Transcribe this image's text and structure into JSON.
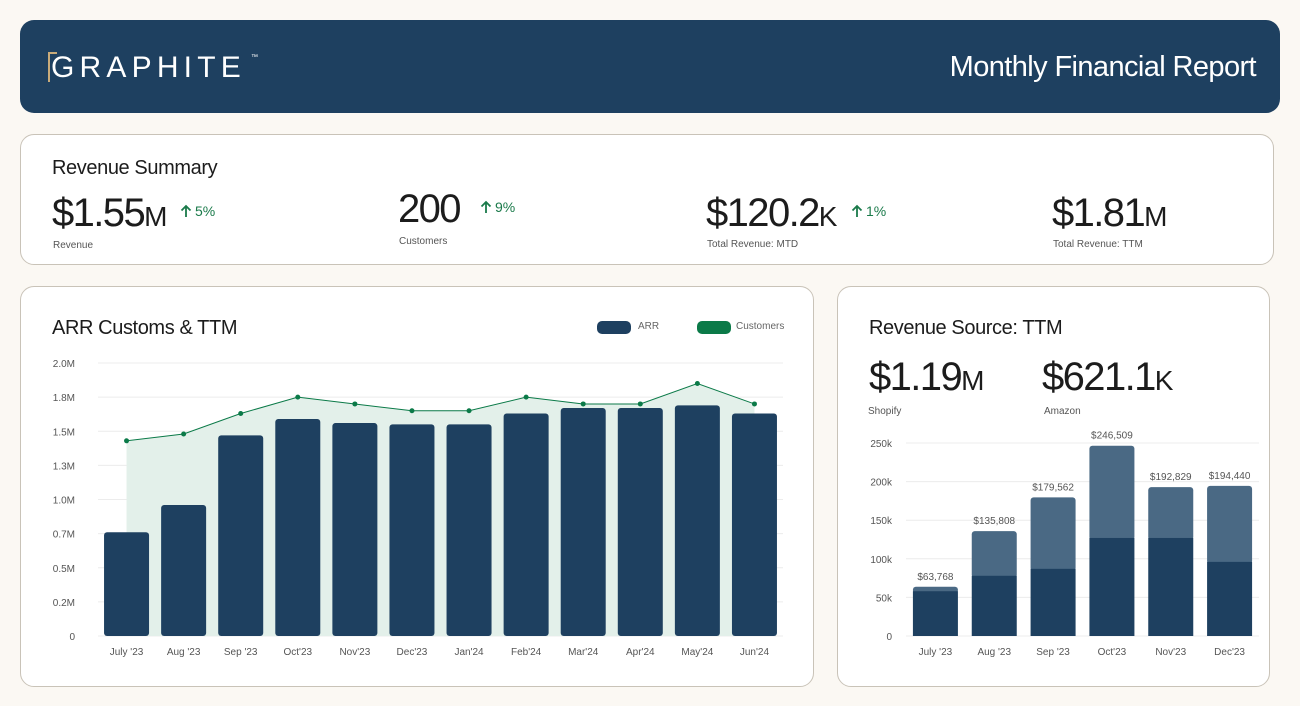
{
  "header": {
    "logo_text": "GRAPHITE",
    "logo_tm": "™",
    "report_title": "Monthly Financial Report"
  },
  "revenue_summary": {
    "title": "Revenue Summary",
    "kpis": [
      {
        "value": "$1.55",
        "unit": "M",
        "delta": "5%",
        "label": "Revenue"
      },
      {
        "value": "200",
        "unit": "",
        "delta": "9%",
        "label": "Customers"
      },
      {
        "value": "$120.2",
        "unit": "K",
        "delta": "1%",
        "label": "Total Revenue: MTD"
      },
      {
        "value": "$1.81",
        "unit": "M",
        "delta": "",
        "label": "Total Revenue: TTM"
      }
    ]
  },
  "arr_card": {
    "title": "ARR Customs & TTM",
    "legend": [
      {
        "label": "ARR",
        "color": "#1e4060"
      },
      {
        "label": "Customers",
        "color": "#0b7a48"
      }
    ]
  },
  "source_card": {
    "title": "Revenue Source: TTM",
    "kpis": [
      {
        "value": "$1.19",
        "unit": "M",
        "label": "Shopify"
      },
      {
        "value": "$621.1",
        "unit": "K",
        "label": "Amazon"
      }
    ]
  },
  "colors": {
    "navy": "#1e4060",
    "slate": "#4a6984",
    "green": "#0b7a48",
    "area": "#e3f0ea",
    "up": "#1a7a4a"
  },
  "chart_data": [
    {
      "type": "bar",
      "title": "ARR Customs & TTM",
      "categories": [
        "July '23",
        "Aug '23",
        "Sep '23",
        "Oct'23",
        "Nov'23",
        "Dec'23",
        "Jan'24",
        "Feb'24",
        "Mar'24",
        "Apr'24",
        "May'24",
        "Jun'24"
      ],
      "series": [
        {
          "name": "ARR",
          "type": "bar",
          "values": [
            0.76,
            0.96,
            1.47,
            1.59,
            1.56,
            1.55,
            1.55,
            1.63,
            1.67,
            1.67,
            1.69,
            1.63
          ]
        },
        {
          "name": "Customers",
          "type": "area",
          "values": [
            1.43,
            1.48,
            1.63,
            1.75,
            1.7,
            1.65,
            1.65,
            1.75,
            1.7,
            1.7,
            1.85,
            1.7
          ]
        }
      ],
      "ylim": [
        0,
        2.0
      ],
      "yticks": [
        "0",
        "0.2M",
        "0.5M",
        "0.7M",
        "1.0M",
        "1.3M",
        "1.5M",
        "1.8M",
        "2.0M"
      ],
      "grid": true,
      "legend_position": "top-right"
    },
    {
      "type": "bar",
      "stacked": true,
      "title": "Revenue Source: TTM",
      "categories": [
        "July '23",
        "Aug '23",
        "Sep '23",
        "Oct'23",
        "Nov'23",
        "Dec'23"
      ],
      "series": [
        {
          "name": "Shopify",
          "values": [
            58000,
            78000,
            87000,
            127000,
            127000,
            96000
          ]
        },
        {
          "name": "Amazon",
          "values": [
            5768,
            57808,
            92562,
            119509,
            65829,
            98440
          ]
        }
      ],
      "totals": [
        63768,
        135808,
        179562,
        246509,
        192829,
        194440
      ],
      "total_labels": [
        "$63,768",
        "$135,808",
        "$179,562",
        "$246,509",
        "$192,829",
        "$194,440"
      ],
      "ylim": [
        0,
        250000
      ],
      "yticks": [
        "0",
        "50k",
        "100k",
        "150k",
        "200k",
        "250k"
      ],
      "grid": true
    }
  ]
}
